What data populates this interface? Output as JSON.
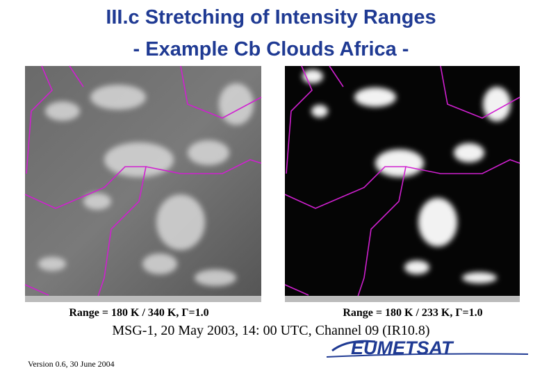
{
  "header": {
    "title_lines": [
      "III.c Stretching of Intensity Ranges",
      "- Example Cb Clouds Africa -"
    ]
  },
  "images": [
    {
      "caption": "Range = 180 K / 340 K, Γ=1.0"
    },
    {
      "caption": "Range = 180 K / 233 K, Γ=1.0"
    }
  ],
  "subtitle": "MSG-1, 20 May 2003, 14: 00 UTC, Channel 09 (IR10.8)",
  "footer": {
    "version": "Version 0.6, 30 June 2004",
    "logo": "EUMETSAT"
  }
}
